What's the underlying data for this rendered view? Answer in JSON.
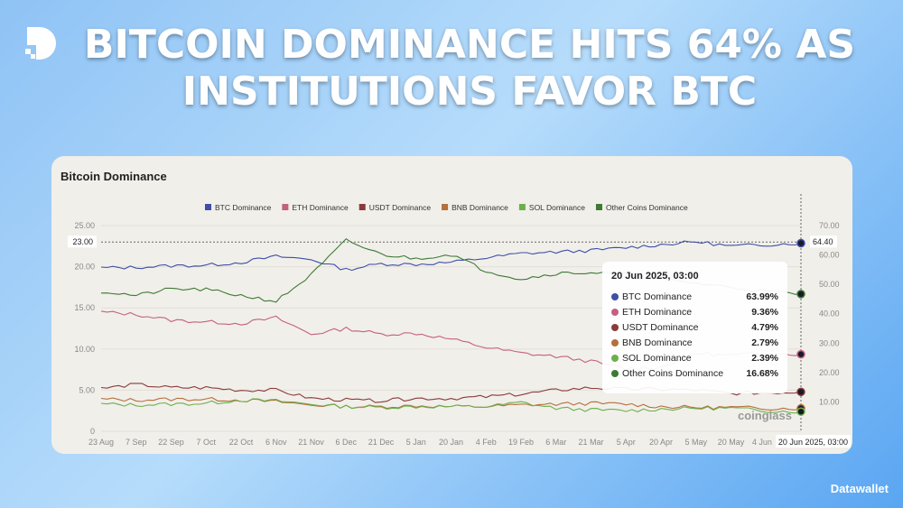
{
  "headline": "BITCOIN DOMINANCE HITS 64% AS INSTITUTIONS FAVOR BTC",
  "brand": "Datawallet",
  "watermark": "coinglass",
  "chart_data": {
    "type": "line",
    "title": "Bitcoin Dominance",
    "categories": [
      "23 Aug",
      "7 Sep",
      "22 Sep",
      "7 Oct",
      "22 Oct",
      "6 Nov",
      "21 Nov",
      "6 Dec",
      "21 Dec",
      "5 Jan",
      "20 Jan",
      "4 Feb",
      "19 Feb",
      "6 Mar",
      "21 Mar",
      "5 Apr",
      "20 Apr",
      "5 May",
      "20 May",
      "4 Jun",
      "20 Jun"
    ],
    "left_axis": {
      "ticks": [
        "0",
        "5.00",
        "10.00",
        "15.00",
        "20.00",
        "25.00"
      ],
      "range": [
        0,
        25
      ]
    },
    "right_axis": {
      "ticks": [
        "10.00",
        "20.00",
        "30.00",
        "40.00",
        "50.00",
        "60.00",
        "70.00"
      ],
      "range": [
        0,
        70
      ]
    },
    "crosshair": {
      "left_label": "23.00",
      "right_label": "64.40",
      "x_label": "20 Jun 2025, 03:00"
    },
    "legend_position": "top",
    "grid": true,
    "series": [
      {
        "name": "BTC Dominance",
        "color": "#3d4fa8",
        "axis": "right",
        "values": [
          55.6,
          55.8,
          56.3,
          56.5,
          57.5,
          59.5,
          58.5,
          55,
          57,
          56.8,
          57.5,
          59,
          60.5,
          61,
          61.5,
          62.5,
          63.5,
          64.5,
          63,
          63.5,
          64
        ]
      },
      {
        "name": "ETH Dominance",
        "color": "#c4607f",
        "axis": "left",
        "values": [
          14.5,
          14.2,
          13.5,
          13.3,
          13.1,
          13.8,
          11.8,
          12.5,
          11.8,
          11.9,
          11.2,
          10.2,
          9.5,
          9.1,
          8.5,
          7.6,
          7.8,
          9.5,
          9.2,
          9.5,
          9.36
        ]
      },
      {
        "name": "USDT Dominance",
        "color": "#8a3a3a",
        "axis": "left",
        "values": [
          5.2,
          5.7,
          5.3,
          5.3,
          5.0,
          5.0,
          4.0,
          3.8,
          3.7,
          4.0,
          4.0,
          4.2,
          4.5,
          5.0,
          5.3,
          5.1,
          5.1,
          5.0,
          4.6,
          4.7,
          4.79
        ]
      },
      {
        "name": "BNB Dominance",
        "color": "#b5703c",
        "axis": "left",
        "values": [
          3.9,
          3.8,
          3.9,
          3.9,
          3.8,
          3.6,
          3.2,
          3.0,
          3.0,
          3.1,
          3.0,
          3.0,
          3.2,
          3.3,
          3.4,
          3.3,
          3.0,
          2.9,
          2.9,
          2.8,
          2.79
        ]
      },
      {
        "name": "SOL Dominance",
        "color": "#6ab04c",
        "axis": "left",
        "values": [
          3.3,
          3.2,
          3.3,
          3.4,
          3.8,
          3.7,
          3.3,
          3.0,
          2.9,
          3.0,
          3.0,
          3.0,
          3.5,
          2.8,
          2.6,
          2.5,
          2.7,
          2.8,
          2.8,
          2.5,
          2.39
        ]
      },
      {
        "name": "Other Coins Dominance",
        "color": "#3d7a34",
        "axis": "left",
        "values": [
          17,
          16.5,
          17.3,
          17.2,
          16.5,
          15.8,
          19,
          23.2,
          21.5,
          21,
          21.5,
          19.5,
          18.5,
          19.2,
          19.3,
          19,
          18.5,
          18,
          17.5,
          17,
          16.68
        ]
      }
    ],
    "tooltip": {
      "title": "20 Jun 2025, 03:00",
      "rows": [
        {
          "name": "BTC Dominance",
          "value": "63.99%",
          "color": "#3d4fa8"
        },
        {
          "name": "ETH Dominance",
          "value": "9.36%",
          "color": "#c4607f"
        },
        {
          "name": "USDT Dominance",
          "value": "4.79%",
          "color": "#8a3a3a"
        },
        {
          "name": "BNB Dominance",
          "value": "2.79%",
          "color": "#b5703c"
        },
        {
          "name": "SOL Dominance",
          "value": "2.39%",
          "color": "#6ab04c"
        },
        {
          "name": "Other Coins Dominance",
          "value": "16.68%",
          "color": "#3d7a34"
        }
      ]
    }
  }
}
